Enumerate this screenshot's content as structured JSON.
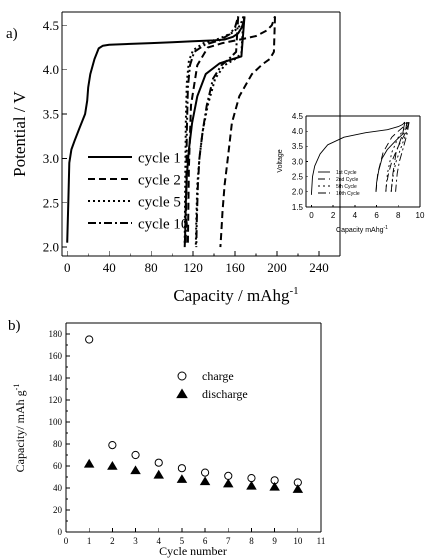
{
  "chart_data": [
    {
      "panel_label": "a)",
      "type": "line",
      "xlabel": "Capacity / mAhg",
      "xlabel_sup": "-1",
      "ylabel": "Potential / V",
      "xlim": [
        -5,
        260
      ],
      "ylim": [
        1.9,
        4.65
      ],
      "xticks": [
        0,
        40,
        80,
        120,
        160,
        200,
        240
      ],
      "yticks": [
        2.0,
        2.5,
        3.0,
        3.5,
        4.0,
        4.5
      ],
      "ytick_labels": [
        "2.0",
        "2.5",
        "3.0",
        "3.5",
        "4.0",
        "4.5"
      ],
      "legend_position": "lower-left",
      "series": [
        {
          "name": "cycle 1",
          "style": "solid",
          "charge_x": [
            0,
            1,
            2,
            4,
            7,
            12,
            17,
            19,
            20,
            22,
            26,
            30,
            34,
            40,
            60,
            80,
            100,
            120,
            140,
            150,
            158,
            163,
            166,
            168,
            169
          ],
          "charge_y": [
            2.05,
            2.5,
            2.95,
            3.1,
            3.2,
            3.35,
            3.5,
            3.65,
            3.8,
            3.95,
            4.12,
            4.24,
            4.27,
            4.28,
            4.29,
            4.3,
            4.31,
            4.32,
            4.33,
            4.34,
            4.37,
            4.41,
            4.47,
            4.53,
            4.6
          ],
          "discharge_x": [
            169,
            166,
            158,
            145,
            132,
            124,
            119,
            116,
            114,
            113,
            112.5,
            112
          ],
          "discharge_y": [
            4.6,
            4.15,
            4.12,
            4.07,
            3.95,
            3.7,
            3.4,
            3.1,
            2.8,
            2.5,
            2.2,
            2.0
          ]
        },
        {
          "name": "cycle 2",
          "style": "dashed",
          "charge_x": [
            115,
            116,
            118,
            124,
            134,
            148,
            165,
            180,
            190,
            195,
            198
          ],
          "charge_y": [
            2.05,
            2.9,
            3.6,
            4.05,
            4.25,
            4.3,
            4.34,
            4.38,
            4.44,
            4.5,
            4.6
          ],
          "discharge_x": [
            198,
            197,
            193,
            186,
            176,
            164,
            157,
            153,
            150,
            148,
            147,
            146
          ],
          "discharge_y": [
            4.6,
            4.2,
            4.12,
            4.06,
            3.95,
            3.7,
            3.4,
            3.0,
            2.7,
            2.4,
            2.2,
            2.0
          ]
        },
        {
          "name": "cycle 5",
          "style": "dotted",
          "charge_x": [
            112,
            112.5,
            113,
            114,
            116,
            120,
            130,
            145,
            158,
            165,
            168
          ],
          "charge_y": [
            2.05,
            2.8,
            3.4,
            3.85,
            4.1,
            4.22,
            4.3,
            4.35,
            4.42,
            4.5,
            4.6
          ],
          "discharge_x": [
            168,
            166,
            160,
            150,
            141,
            134,
            129,
            126,
            124,
            123,
            122.5
          ],
          "discharge_y": [
            4.6,
            4.18,
            4.12,
            4.05,
            3.9,
            3.6,
            3.3,
            3.0,
            2.7,
            2.3,
            2.0
          ]
        },
        {
          "name": "cycle 10",
          "style": "dashdot",
          "charge_x": [
            113,
            113.5,
            114,
            115,
            117,
            121,
            131,
            145,
            155,
            160,
            163
          ],
          "charge_y": [
            2.05,
            2.7,
            3.3,
            3.8,
            4.05,
            4.2,
            4.28,
            4.33,
            4.4,
            4.48,
            4.6
          ],
          "discharge_x": [
            163,
            161,
            155,
            147,
            139,
            133,
            129,
            126,
            124.5,
            123.5,
            123
          ],
          "discharge_y": [
            4.6,
            4.2,
            4.13,
            4.05,
            3.9,
            3.6,
            3.3,
            3.0,
            2.7,
            2.3,
            2.0
          ]
        }
      ]
    },
    {
      "panel_label": "inset",
      "type": "line",
      "xlabel": "Capacity mAhg",
      "xlabel_sup": "-1",
      "ylabel": "Voltage",
      "xlim": [
        -0.5,
        10
      ],
      "ylim": [
        1.5,
        4.5
      ],
      "xticks": [
        0,
        2,
        4,
        6,
        8,
        10
      ],
      "yticks": [
        1.5,
        2.0,
        2.5,
        3.0,
        3.5,
        4.0,
        4.5
      ],
      "ytick_labels": [
        "1.5",
        "2.0",
        "2.5",
        "3.0",
        "3.5",
        "4.0",
        "4.5"
      ],
      "legend_position": "lower-left",
      "series": [
        {
          "name": "1st Cycle",
          "style": "solid",
          "charge_x": [
            0,
            0.1,
            0.3,
            0.8,
            1.5,
            3,
            5,
            7,
            8,
            8.4,
            8.6
          ],
          "charge_y": [
            1.9,
            2.5,
            2.85,
            3.25,
            3.55,
            3.8,
            3.95,
            4.05,
            4.15,
            4.22,
            4.3
          ],
          "discharge_x": [
            8.6,
            8.4,
            7.8,
            7,
            6.5,
            6.2,
            6.0,
            5.95
          ],
          "discharge_y": [
            4.3,
            3.9,
            3.7,
            3.4,
            3.1,
            2.7,
            2.3,
            2.0
          ]
        },
        {
          "name": "2nd Cycle",
          "style": "dashed",
          "charge_x": [
            5.95,
            6.1,
            6.6,
            7.4,
            8.0,
            8.5,
            8.8
          ],
          "charge_y": [
            2.0,
            2.6,
            3.3,
            3.8,
            4.0,
            4.15,
            4.3
          ],
          "discharge_x": [
            8.8,
            8.6,
            8.0,
            7.4,
            7.1,
            6.9,
            6.85
          ],
          "discharge_y": [
            4.3,
            3.9,
            3.5,
            3.0,
            2.6,
            2.2,
            2.0
          ]
        },
        {
          "name": "5th Cycle",
          "style": "dotted",
          "charge_x": [
            6.85,
            7.0,
            7.4,
            8.0,
            8.4,
            8.7,
            8.9
          ],
          "charge_y": [
            2.0,
            2.6,
            3.3,
            3.8,
            4.0,
            4.15,
            4.3
          ],
          "discharge_x": [
            8.9,
            8.7,
            8.3,
            7.8,
            7.55,
            7.4,
            7.35
          ],
          "discharge_y": [
            4.3,
            3.9,
            3.5,
            3.0,
            2.6,
            2.2,
            2.0
          ]
        },
        {
          "name": "10th Cycle",
          "style": "dashdot",
          "charge_x": [
            7.35,
            7.5,
            7.8,
            8.3,
            8.6,
            8.85,
            9.0
          ],
          "charge_y": [
            2.0,
            2.6,
            3.3,
            3.8,
            4.0,
            4.15,
            4.3
          ],
          "discharge_x": [
            9.0,
            8.8,
            8.5,
            8.1,
            7.9,
            7.8,
            7.75
          ],
          "discharge_y": [
            4.3,
            3.9,
            3.5,
            3.0,
            2.6,
            2.2,
            2.0
          ]
        }
      ]
    },
    {
      "panel_label": "b)",
      "type": "scatter",
      "xlabel": "Cycle number",
      "ylabel": "Capacity/ mAh g",
      "ylabel_sup": "-1",
      "xlim": [
        0,
        11
      ],
      "ylim": [
        0,
        190
      ],
      "xticks": [
        0,
        1,
        2,
        3,
        4,
        5,
        6,
        7,
        8,
        9,
        10,
        11
      ],
      "yticks": [
        0,
        20,
        40,
        60,
        80,
        100,
        120,
        140,
        160,
        180
      ],
      "legend_position": "top-center",
      "series": [
        {
          "name": "charge",
          "marker": "open-circle",
          "x": [
            1,
            2,
            3,
            4,
            5,
            6,
            7,
            8,
            9,
            10
          ],
          "y": [
            175,
            79,
            70,
            63,
            58,
            54,
            51,
            49,
            47,
            45
          ]
        },
        {
          "name": "discharge",
          "marker": "filled-triangle",
          "x": [
            1,
            2,
            3,
            4,
            5,
            6,
            7,
            8,
            9,
            10
          ],
          "y": [
            62,
            60,
            56,
            52,
            48,
            46,
            44,
            42,
            41,
            39
          ]
        }
      ]
    }
  ]
}
